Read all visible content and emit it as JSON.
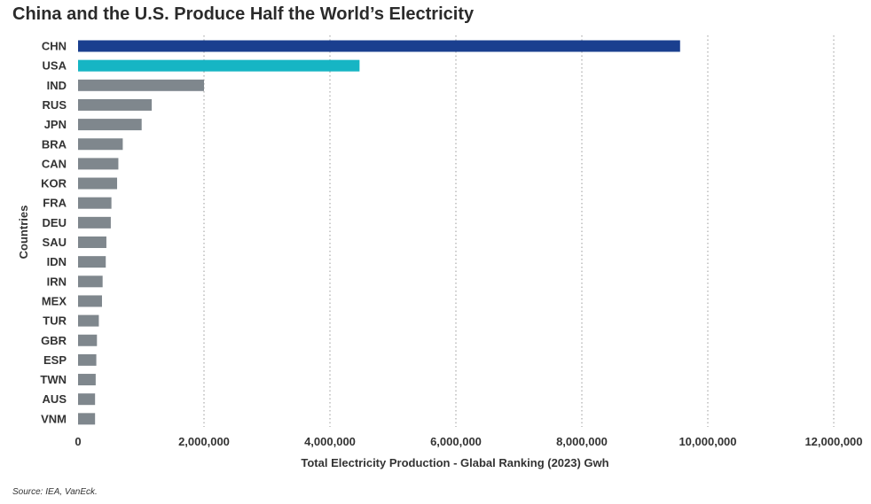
{
  "title": "China and the U.S. Produce Half the World’s Electricity",
  "source": "Source: IEA, VanEck.",
  "chart_data": {
    "type": "bar",
    "orientation": "horizontal",
    "title": "China and the U.S. Produce Half the World’s Electricity",
    "xlabel": "Total Electricity Production - Glabal Ranking (2023) Gwh",
    "ylabel": "Countries",
    "xlim": [
      0,
      12000000
    ],
    "xticks": [
      0,
      2000000,
      4000000,
      6000000,
      8000000,
      10000000,
      12000000
    ],
    "xtick_labels": [
      "0",
      "2,000,000",
      "4,000,000",
      "6,000,000",
      "8,000,000",
      "10,000,000",
      "12,000,000"
    ],
    "grid": "vertical dotted",
    "categories": [
      "CHN",
      "USA",
      "IND",
      "RUS",
      "JPN",
      "BRA",
      "CAN",
      "KOR",
      "FRA",
      "DEU",
      "SAU",
      "IDN",
      "IRN",
      "MEX",
      "TUR",
      "GBR",
      "ESP",
      "TWN",
      "AUS",
      "VNM"
    ],
    "values": [
      9560000,
      4470000,
      2000000,
      1170000,
      1010000,
      710000,
      640000,
      620000,
      530000,
      520000,
      450000,
      440000,
      390000,
      380000,
      330000,
      300000,
      290000,
      280000,
      270000,
      270000
    ],
    "colors": [
      "#1a3f8f",
      "#16b5c4",
      "#7f878d",
      "#7f878d",
      "#7f878d",
      "#7f878d",
      "#7f878d",
      "#7f878d",
      "#7f878d",
      "#7f878d",
      "#7f878d",
      "#7f878d",
      "#7f878d",
      "#7f878d",
      "#7f878d",
      "#7f878d",
      "#7f878d",
      "#7f878d",
      "#7f878d",
      "#7f878d"
    ]
  }
}
